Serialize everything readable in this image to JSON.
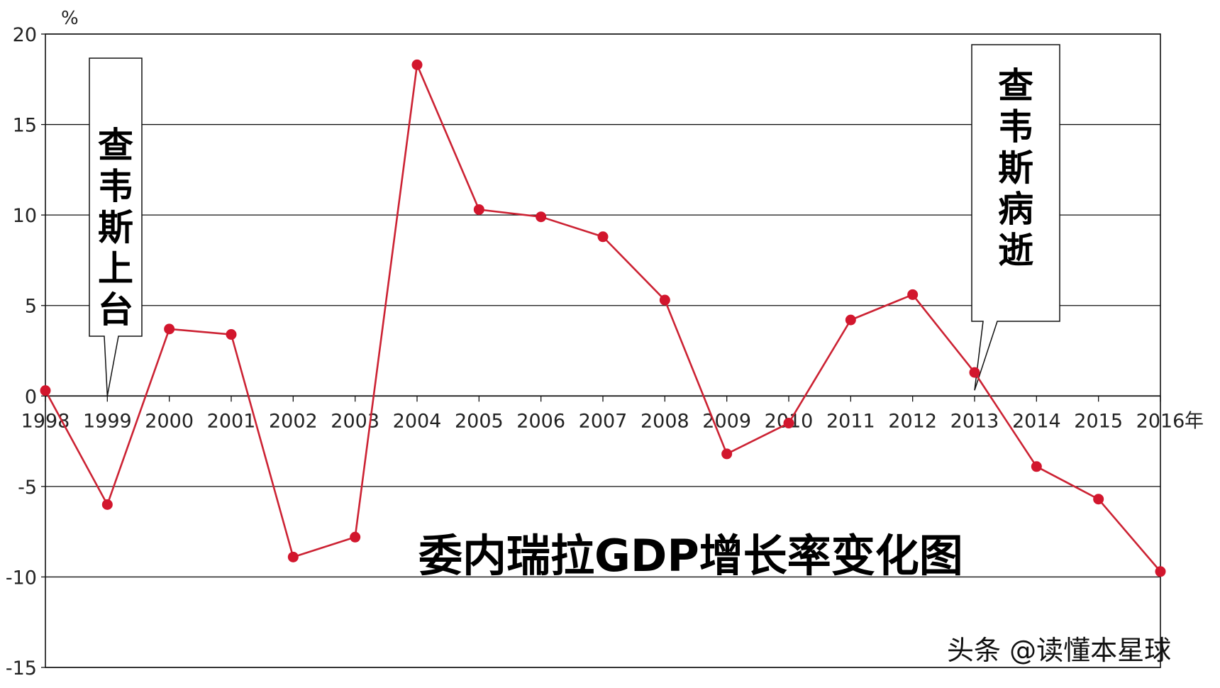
{
  "chart_data": {
    "type": "line",
    "title": "委内瑞拉GDP增长率变化图",
    "ylabel": "%",
    "xlabel": "年",
    "ylim": [
      -15,
      20
    ],
    "yticks": [
      20,
      15,
      10,
      5,
      0,
      -5,
      -10,
      -15
    ],
    "grid": true,
    "categories": [
      "1998",
      "1999",
      "2000",
      "2001",
      "2002",
      "2003",
      "2004",
      "2005",
      "2006",
      "2007",
      "2008",
      "2009",
      "2010",
      "2011",
      "2012",
      "2013",
      "2014",
      "2015",
      "2016"
    ],
    "series": [
      {
        "values": [
          0.3,
          -6.0,
          3.7,
          3.4,
          -8.9,
          -7.8,
          18.3,
          10.3,
          9.9,
          8.8,
          5.3,
          -3.2,
          -1.5,
          4.2,
          5.6,
          1.3,
          -3.9,
          -5.7,
          -9.7
        ],
        "color": "#d2162d"
      }
    ],
    "line_color": "#cc2233",
    "annotations": [
      {
        "text": "查韦斯上台",
        "points_to": "1999"
      },
      {
        "text": "查韦斯病逝",
        "points_to": "2013"
      }
    ]
  },
  "watermark": "头条 @读懂本星球"
}
